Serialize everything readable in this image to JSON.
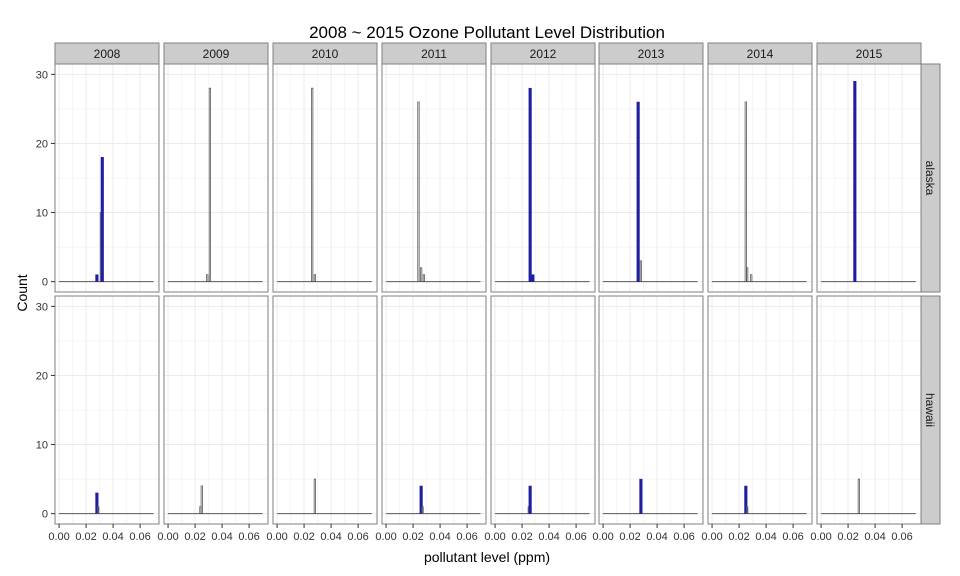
{
  "chart_data": {
    "type": "bar",
    "title": "2008 ~ 2015 Ozone Pollutant Level Distribution",
    "xlabel": "pollutant level (ppm)",
    "ylabel": "Count",
    "xlim": [
      -0.003,
      0.074
    ],
    "ylim": [
      -1.5,
      31.5
    ],
    "x_ticks": [
      0.0,
      0.02,
      0.04,
      0.06
    ],
    "x_tick_labels": [
      "0.00",
      "0.02",
      "0.04",
      "0.06"
    ],
    "y_ticks": [
      0,
      10,
      20,
      30
    ],
    "y_tick_labels": [
      "0",
      "10",
      "20",
      "30"
    ],
    "columns": [
      "2008",
      "2009",
      "2010",
      "2011",
      "2012",
      "2013",
      "2014",
      "2015"
    ],
    "rows": [
      "alaska",
      "hawaii"
    ],
    "bin_width": 0.001,
    "colors": {
      "panel_bg": "#ffffff",
      "grid": "#ebebeb",
      "strip_bg": "#cccccc",
      "border": "#7f7f7f",
      "highlight_bar": "#1f1fa0",
      "bar": "#595959",
      "baseline": "#595959"
    },
    "panels": [
      {
        "row": "alaska",
        "col": "2008",
        "bars": [
          {
            "x": 0.028,
            "count": 1,
            "highlight": true
          },
          {
            "x": 0.031,
            "count": 10,
            "highlight": false
          },
          {
            "x": 0.032,
            "count": 18,
            "highlight": true
          }
        ]
      },
      {
        "row": "alaska",
        "col": "2009",
        "bars": [
          {
            "x": 0.029,
            "count": 1,
            "highlight": false
          },
          {
            "x": 0.031,
            "count": 28,
            "highlight": false
          }
        ]
      },
      {
        "row": "alaska",
        "col": "2010",
        "bars": [
          {
            "x": 0.026,
            "count": 28,
            "highlight": false
          },
          {
            "x": 0.028,
            "count": 1,
            "highlight": false
          }
        ]
      },
      {
        "row": "alaska",
        "col": "2011",
        "bars": [
          {
            "x": 0.024,
            "count": 26,
            "highlight": false
          },
          {
            "x": 0.026,
            "count": 2,
            "highlight": false
          },
          {
            "x": 0.028,
            "count": 1,
            "highlight": false
          }
        ]
      },
      {
        "row": "alaska",
        "col": "2012",
        "bars": [
          {
            "x": 0.026,
            "count": 28,
            "highlight": true
          },
          {
            "x": 0.028,
            "count": 1,
            "highlight": true
          }
        ]
      },
      {
        "row": "alaska",
        "col": "2013",
        "bars": [
          {
            "x": 0.026,
            "count": 26,
            "highlight": true
          },
          {
            "x": 0.028,
            "count": 3,
            "highlight": false
          }
        ]
      },
      {
        "row": "alaska",
        "col": "2014",
        "bars": [
          {
            "x": 0.025,
            "count": 26,
            "highlight": false
          },
          {
            "x": 0.026,
            "count": 2,
            "highlight": false
          },
          {
            "x": 0.029,
            "count": 1,
            "highlight": false
          }
        ]
      },
      {
        "row": "alaska",
        "col": "2015",
        "bars": [
          {
            "x": 0.025,
            "count": 29,
            "highlight": true
          }
        ]
      },
      {
        "row": "hawaii",
        "col": "2008",
        "bars": [
          {
            "x": 0.028,
            "count": 3,
            "highlight": true
          },
          {
            "x": 0.029,
            "count": 1,
            "highlight": false
          }
        ]
      },
      {
        "row": "hawaii",
        "col": "2009",
        "bars": [
          {
            "x": 0.024,
            "count": 1,
            "highlight": false
          },
          {
            "x": 0.025,
            "count": 4,
            "highlight": false
          }
        ]
      },
      {
        "row": "hawaii",
        "col": "2010",
        "bars": [
          {
            "x": 0.028,
            "count": 5,
            "highlight": false
          }
        ]
      },
      {
        "row": "hawaii",
        "col": "2011",
        "bars": [
          {
            "x": 0.026,
            "count": 4,
            "highlight": true
          },
          {
            "x": 0.027,
            "count": 1,
            "highlight": false
          }
        ]
      },
      {
        "row": "hawaii",
        "col": "2012",
        "bars": [
          {
            "x": 0.025,
            "count": 1,
            "highlight": false
          },
          {
            "x": 0.026,
            "count": 4,
            "highlight": true
          }
        ]
      },
      {
        "row": "hawaii",
        "col": "2013",
        "bars": [
          {
            "x": 0.028,
            "count": 5,
            "highlight": true
          }
        ]
      },
      {
        "row": "hawaii",
        "col": "2014",
        "bars": [
          {
            "x": 0.025,
            "count": 4,
            "highlight": true
          },
          {
            "x": 0.026,
            "count": 1,
            "highlight": false
          }
        ]
      },
      {
        "row": "hawaii",
        "col": "2015",
        "bars": [
          {
            "x": 0.028,
            "count": 5,
            "highlight": false
          }
        ]
      }
    ]
  }
}
